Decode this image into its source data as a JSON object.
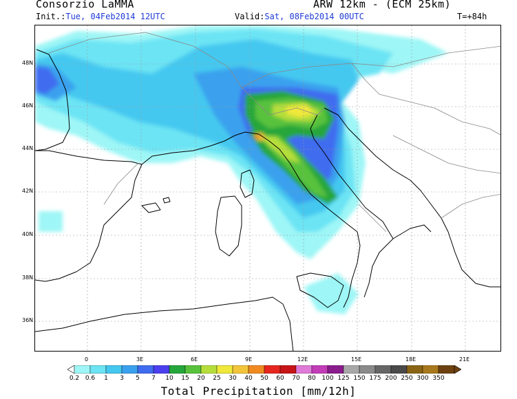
{
  "header": {
    "org": "Consorzio LaMMA",
    "model": "ARW 12km - (ECM 25km)",
    "init_label": "Init.:",
    "init_value": "Tue, 04Feb2014 12UTC",
    "valid_label": "Valid:",
    "valid_value": "Sat, 08Feb2014 00UTC",
    "lead_time": "T=+84h"
  },
  "axes": {
    "lat_labels": [
      "48N",
      "46N",
      "44N",
      "42N",
      "40N",
      "38N",
      "36N"
    ],
    "lon_labels": [
      "0",
      "3E",
      "6E",
      "9E",
      "12E",
      "15E",
      "18E",
      "21E"
    ]
  },
  "colorbar": {
    "title": "Total Precipitation [mm/12h]",
    "levels": [
      "0.2",
      "0.6",
      "1",
      "3",
      "5",
      "7",
      "10",
      "15",
      "20",
      "25",
      "30",
      "40",
      "50",
      "60",
      "70",
      "80",
      "100",
      "125",
      "150",
      "175",
      "200",
      "250",
      "300",
      "350"
    ],
    "colors": [
      "#9ef6f6",
      "#6ce4f4",
      "#45c8f0",
      "#3aa1ee",
      "#3f6cf0",
      "#4b3ff0",
      "#25a63a",
      "#58c23c",
      "#b6de3a",
      "#f0e83a",
      "#f3c53a",
      "#f08a20",
      "#e6261e",
      "#c81416",
      "#e07ad8",
      "#c23cb8",
      "#8a1c8c",
      "#a8a8a8",
      "#8a8a8a",
      "#666666",
      "#4a4a4a",
      "#8a6414",
      "#a8781c",
      "#6e4210"
    ]
  }
}
